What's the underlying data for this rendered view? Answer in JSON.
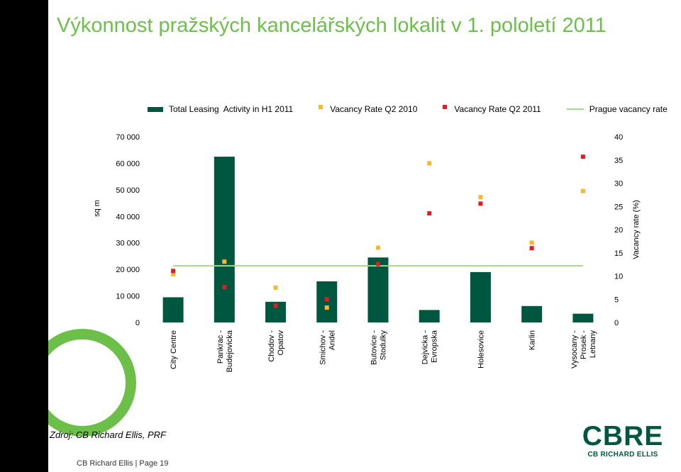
{
  "title": "Výkonnost pražských kancelářských lokalit v 1. pololetí 2011",
  "legend": {
    "bars": "Total Leasing  Activity in H1 2011",
    "vac2010": "Vacancy Rate Q2 2010",
    "vac2011": "Vacancy Rate Q2 2011",
    "prague": "Prague vacancy rate"
  },
  "source": "Zdroj: CB Richard Ellis, PRF",
  "footer": "CB Richard Ellis | Page 19",
  "logo": {
    "main": "CBRE",
    "sub": "CB RICHARD ELLIS"
  },
  "colors": {
    "title": "#6cc04a",
    "bar": "#00573f",
    "vac2010": "#f8b72c",
    "vac2011": "#e31b23",
    "prague": "#a6d785",
    "logo": "#00573f",
    "sidebar": "#000000",
    "accent_ring": "#6cc04a"
  },
  "chart_data": {
    "type": "bar",
    "xlabel": "",
    "ylabel": "sq m",
    "y2label": "Vacancy rate (%)",
    "ylim": [
      0,
      70000
    ],
    "y2lim": [
      0,
      40
    ],
    "yticks": [
      "0",
      "10 000",
      "20 000",
      "30 000",
      "40 000",
      "50 000",
      "60 000",
      "70 000"
    ],
    "y2ticks": [
      "0",
      "5",
      "10",
      "15",
      "20",
      "25",
      "30",
      "35",
      "40"
    ],
    "legend_position": "top",
    "grid": false,
    "categories": [
      [
        "City Centre"
      ],
      [
        "Pankrac -",
        "Budejovicka"
      ],
      [
        "Chodov -",
        "Opatov"
      ],
      [
        "Smichov -",
        "Andel"
      ],
      [
        "Butovice -",
        "Stodulky"
      ],
      [
        "Dejvicka -",
        "Evropska"
      ],
      [
        "Holesovice"
      ],
      [
        "Karlin"
      ],
      [
        "Vysocany -",
        "Prosek -",
        "Letnany"
      ]
    ],
    "series": [
      {
        "name": "Total Leasing  Activity in H1 2011",
        "axis": "left",
        "kind": "bar",
        "values": [
          9500,
          62500,
          7800,
          15500,
          24500,
          4700,
          19000,
          6200,
          3300
        ]
      },
      {
        "name": "Vacancy Rate Q2 2010",
        "axis": "right",
        "kind": "marker",
        "values": [
          10.4,
          13.1,
          7.5,
          3.2,
          16.1,
          34.3,
          27.0,
          17.2,
          28.3
        ]
      },
      {
        "name": "Vacancy Rate Q2 2011",
        "axis": "right",
        "kind": "marker",
        "values": [
          11.1,
          7.6,
          3.6,
          5.0,
          12.6,
          23.5,
          25.6,
          16.0,
          35.7
        ]
      },
      {
        "name": "Prague vacancy rate",
        "axis": "right",
        "kind": "line",
        "values": [
          12.2,
          12.2,
          12.2,
          12.2,
          12.2,
          12.2,
          12.2,
          12.2,
          12.2
        ]
      }
    ]
  }
}
